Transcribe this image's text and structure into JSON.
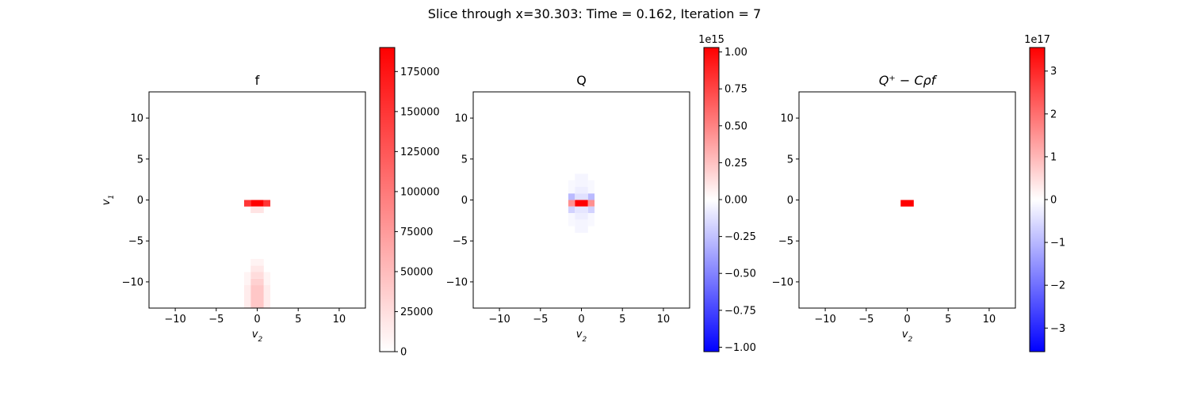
{
  "suptitle": "Slice through x=30.303: Time = 0.162, Iteration = 7",
  "colormap": {
    "low": "#0000ff",
    "mid": "#ffffff",
    "high": "#ff0000"
  },
  "chart_data": [
    {
      "type": "heatmap",
      "title": "f",
      "xlabel": "v2",
      "ylabel": "v1",
      "xlim": [
        -13.2,
        13.2
      ],
      "ylim": [
        -13.2,
        13.2
      ],
      "xticks": [
        -10,
        -5,
        0,
        5,
        10
      ],
      "yticks": [
        -10,
        -5,
        0,
        5,
        10
      ],
      "grid": false,
      "colorbar": {
        "range": [
          0,
          190000
        ],
        "ticks": [
          0,
          25000,
          50000,
          75000,
          100000,
          125000,
          150000,
          175000
        ],
        "tick_labels": [
          "0",
          "25000",
          "50000",
          "75000",
          "100000",
          "125000",
          "150000",
          "175000"
        ],
        "multiplier": ""
      },
      "cells": [
        {
          "x": [
            -0.8,
            0.8
          ],
          "y": [
            -0.8,
            0.0
          ],
          "value": 190000
        },
        {
          "x": [
            -1.6,
            -0.8
          ],
          "y": [
            -0.8,
            0.0
          ],
          "value": 150000
        },
        {
          "x": [
            0.8,
            1.6
          ],
          "y": [
            -0.8,
            0.0
          ],
          "value": 150000
        },
        {
          "x": [
            -0.8,
            0.8
          ],
          "y": [
            -1.6,
            -0.8
          ],
          "value": 20000
        },
        {
          "x": [
            -0.8,
            0.8
          ],
          "y": [
            -13.2,
            -10.4
          ],
          "value": 42000
        },
        {
          "x": [
            -0.8,
            0.8
          ],
          "y": [
            -10.4,
            -9.6
          ],
          "value": 34000
        },
        {
          "x": [
            -0.8,
            0.8
          ],
          "y": [
            -9.6,
            -8.8
          ],
          "value": 26000
        },
        {
          "x": [
            -0.8,
            0.8
          ],
          "y": [
            -8.8,
            -8.0
          ],
          "value": 17000
        },
        {
          "x": [
            -0.8,
            0.8
          ],
          "y": [
            -8.0,
            -7.2
          ],
          "value": 9000
        },
        {
          "x": [
            -1.6,
            -0.8
          ],
          "y": [
            -13.2,
            -10.4
          ],
          "value": 14000
        },
        {
          "x": [
            0.8,
            1.6
          ],
          "y": [
            -13.2,
            -10.4
          ],
          "value": 14000
        },
        {
          "x": [
            -1.6,
            -0.8
          ],
          "y": [
            -10.4,
            -8.8
          ],
          "value": 8000
        },
        {
          "x": [
            0.8,
            1.6
          ],
          "y": [
            -10.4,
            -8.8
          ],
          "value": 8000
        }
      ]
    },
    {
      "type": "heatmap",
      "title": "Q",
      "xlabel": "v2",
      "ylabel": "",
      "xlim": [
        -13.2,
        13.2
      ],
      "ylim": [
        -13.2,
        13.2
      ],
      "xticks": [
        -10,
        -5,
        0,
        5,
        10
      ],
      "yticks": [
        -10,
        -5,
        0,
        5,
        10
      ],
      "grid": false,
      "colorbar": {
        "range": [
          -1.03,
          1.03
        ],
        "ticks": [
          -1.0,
          -0.75,
          -0.5,
          -0.25,
          0.0,
          0.25,
          0.5,
          0.75,
          1.0
        ],
        "tick_labels": [
          "−1.00",
          "−0.75",
          "−0.50",
          "−0.25",
          "0.00",
          "0.25",
          "0.50",
          "0.75",
          "1.00"
        ],
        "multiplier": "1e15"
      },
      "cells": [
        {
          "x": [
            -0.8,
            0.8
          ],
          "y": [
            -0.8,
            0.0
          ],
          "value": 1.03
        },
        {
          "x": [
            -1.6,
            -0.8
          ],
          "y": [
            -0.8,
            0.0
          ],
          "value": 0.45
        },
        {
          "x": [
            0.8,
            1.6
          ],
          "y": [
            -0.8,
            0.0
          ],
          "value": 0.45
        },
        {
          "x": [
            -1.6,
            -0.8
          ],
          "y": [
            0.0,
            0.8
          ],
          "value": -0.28
        },
        {
          "x": [
            0.8,
            1.6
          ],
          "y": [
            0.0,
            0.8
          ],
          "value": -0.28
        },
        {
          "x": [
            -1.6,
            -0.8
          ],
          "y": [
            -1.6,
            -0.8
          ],
          "value": -0.18
        },
        {
          "x": [
            0.8,
            1.6
          ],
          "y": [
            -1.6,
            -0.8
          ],
          "value": -0.18
        },
        {
          "x": [
            -0.8,
            0.8
          ],
          "y": [
            0.0,
            0.8
          ],
          "value": -0.12
        },
        {
          "x": [
            -0.8,
            0.8
          ],
          "y": [
            -1.6,
            -0.8
          ],
          "value": -0.1
        },
        {
          "x": [
            -0.8,
            0.8
          ],
          "y": [
            0.8,
            1.6
          ],
          "value": -0.07
        },
        {
          "x": [
            -0.8,
            0.8
          ],
          "y": [
            -2.4,
            -1.6
          ],
          "value": -0.07
        },
        {
          "x": [
            -0.8,
            0.8
          ],
          "y": [
            1.6,
            3.2
          ],
          "value": -0.04
        },
        {
          "x": [
            -0.8,
            0.8
          ],
          "y": [
            -4.0,
            -2.4
          ],
          "value": -0.04
        },
        {
          "x": [
            -1.6,
            -0.8
          ],
          "y": [
            0.8,
            2.4
          ],
          "value": -0.03
        },
        {
          "x": [
            0.8,
            1.6
          ],
          "y": [
            0.8,
            2.4
          ],
          "value": -0.03
        },
        {
          "x": [
            -1.6,
            -0.8
          ],
          "y": [
            -3.2,
            -1.6
          ],
          "value": -0.03
        },
        {
          "x": [
            0.8,
            1.6
          ],
          "y": [
            -3.2,
            -1.6
          ],
          "value": -0.03
        }
      ]
    },
    {
      "type": "heatmap",
      "title": "Q⁺ − Cρf",
      "xlabel": "v2",
      "ylabel": "",
      "xlim": [
        -13.2,
        13.2
      ],
      "ylim": [
        -13.2,
        13.2
      ],
      "xticks": [
        -10,
        -5,
        0,
        5,
        10
      ],
      "yticks": [
        -10,
        -5,
        0,
        5,
        10
      ],
      "grid": false,
      "colorbar": {
        "range": [
          -3.55,
          3.55
        ],
        "ticks": [
          -3,
          -2,
          -1,
          0,
          1,
          2,
          3
        ],
        "tick_labels": [
          "−3",
          "−2",
          "−1",
          "0",
          "1",
          "2",
          "3"
        ],
        "multiplier": "1e17"
      },
      "cells": [
        {
          "x": [
            -0.8,
            0.8
          ],
          "y": [
            -0.8,
            0.0
          ],
          "value": 3.55
        }
      ]
    }
  ]
}
